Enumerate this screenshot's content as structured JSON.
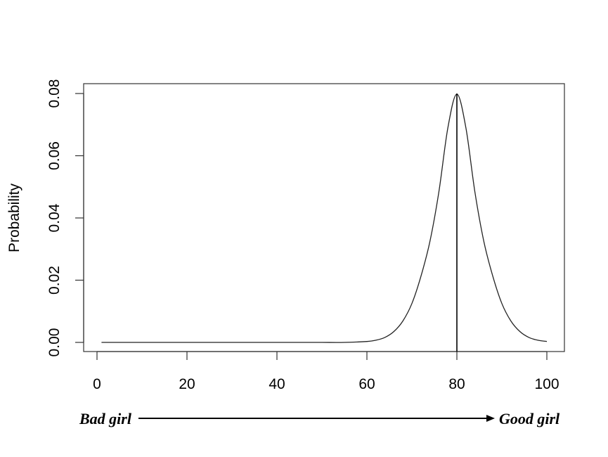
{
  "chart_data": {
    "type": "line",
    "title": "",
    "xlabel": "",
    "ylabel": "Probability",
    "xlim": [
      0,
      100
    ],
    "ylim": [
      0,
      0.08
    ],
    "x_ticks": [
      "0",
      "20",
      "40",
      "60",
      "80",
      "100"
    ],
    "y_ticks": [
      "0.00",
      "0.02",
      "0.04",
      "0.06",
      "0.08"
    ],
    "grid": false,
    "legend": "none",
    "series": [
      {
        "x": [
          1,
          5,
          10,
          15,
          20,
          25,
          30,
          35,
          40,
          45,
          50,
          55,
          60,
          62,
          64,
          66,
          68,
          70,
          72,
          74,
          76,
          78,
          80,
          82,
          84,
          86,
          88,
          90,
          92,
          94,
          96,
          98,
          100
        ],
        "y": [
          0,
          0,
          0,
          0,
          0,
          0,
          0,
          0,
          0,
          0,
          0,
          0,
          0.0003,
          0.0007,
          0.0016,
          0.0035,
          0.0069,
          0.0125,
          0.0212,
          0.0324,
          0.0484,
          0.069,
          0.0798,
          0.069,
          0.0484,
          0.0324,
          0.0212,
          0.0125,
          0.0069,
          0.0035,
          0.0016,
          0.0007,
          0.0003
        ]
      }
    ],
    "vline": {
      "x": 80
    },
    "annotations": {
      "left": "Bad girl",
      "right": "Good girl"
    }
  }
}
